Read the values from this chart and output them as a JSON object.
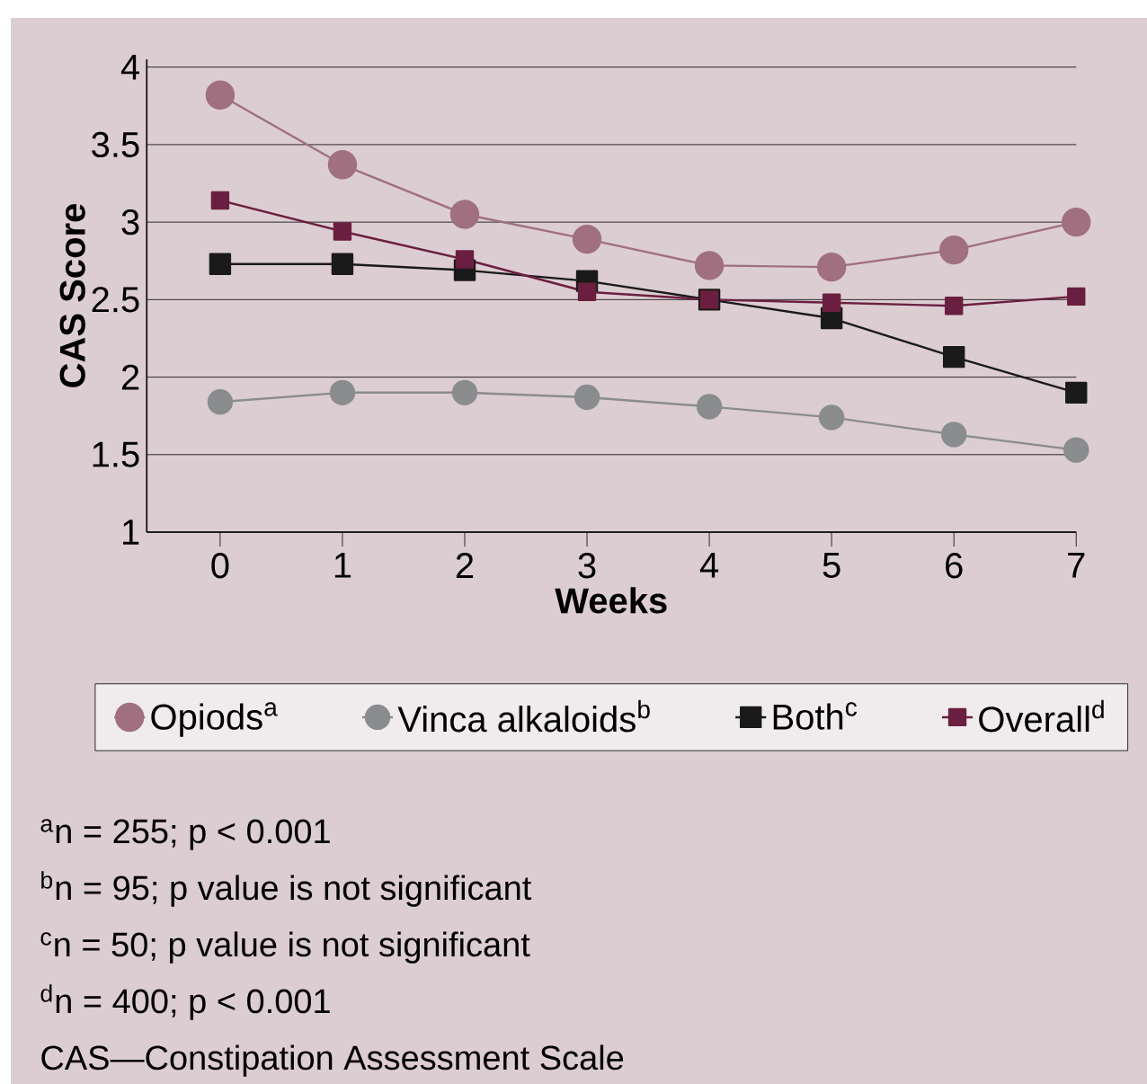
{
  "chart_data": {
    "type": "line",
    "xlabel": "Weeks",
    "ylabel": "CAS Score",
    "x": [
      0,
      1,
      2,
      3,
      4,
      5,
      6,
      7
    ],
    "xlim": [
      -0.6,
      7
    ],
    "xticks": [
      0,
      1,
      2,
      3,
      4,
      5,
      6,
      7
    ],
    "ylim": [
      1,
      4.05
    ],
    "yticks": [
      1,
      1.5,
      2,
      2.5,
      3,
      3.5,
      4
    ],
    "grid": "y",
    "legend": "bottom",
    "line_style": "solid",
    "series": [
      {
        "name": "Opiods$^{a}$",
        "color": "#a07080",
        "marker": "circle",
        "values": [
          3.82,
          3.37,
          3.05,
          2.89,
          2.72,
          2.71,
          2.82,
          3.0
        ]
      },
      {
        "name": "Vinca alkaloids$^{b}$",
        "color": "#8a8c8e",
        "marker": "circle",
        "values": [
          1.84,
          1.9,
          1.9,
          1.87,
          1.81,
          1.74,
          1.63,
          1.53
        ]
      },
      {
        "name": "Both$^{c}$",
        "color": "#1a1a1a",
        "marker": "square",
        "values": [
          2.73,
          2.73,
          2.69,
          2.62,
          2.5,
          2.38,
          2.13,
          1.9
        ]
      },
      {
        "name": "Overall$^{d}$",
        "color": "#6b1f40",
        "marker": "square",
        "values": [
          3.14,
          2.94,
          2.76,
          2.55,
          2.5,
          2.48,
          2.46,
          2.52
        ]
      }
    ],
    "annotations": [
      "$^{a}$n = 255; p < 0.001",
      "$^{b}$n = 95; p value  is not significant",
      "$^{c}$n = 50; p value is not significant",
      "$^{d}$n = 400; p < 0.001",
      "CAS—Constipation Assessment Scale"
    ]
  }
}
